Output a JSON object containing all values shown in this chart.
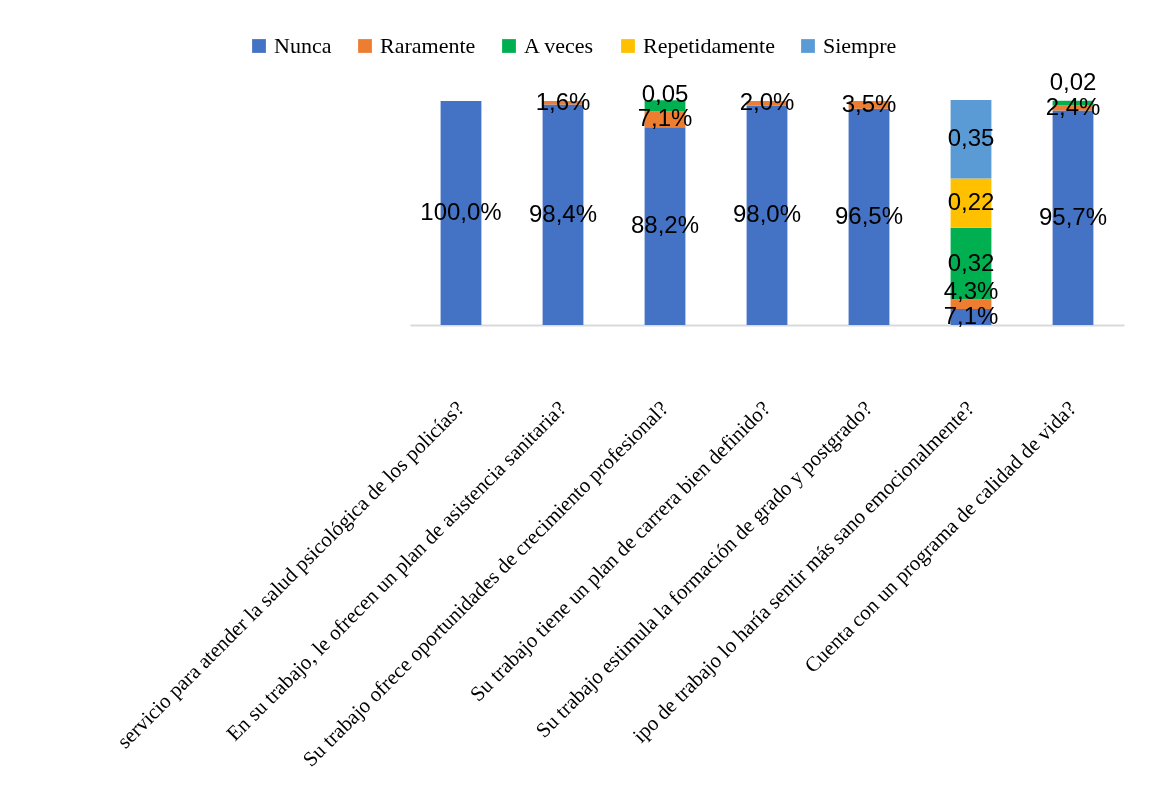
{
  "chart_data": {
    "type": "bar",
    "stacked": true,
    "legend": "top",
    "categories": [
      "servicio para atender la salud psicológica de los policías?",
      "En su trabajo, le ofrecen un plan de asistencia sanitaria?",
      "Su trabajo ofrece oportunidades de crecimiento profesional?",
      "Su trabajo tiene un plan de carrera bien definido?",
      "Su trabajo estimula  la formación de grado y postgrado?",
      "ipo de trabajo lo haría sentir más sano emocionalmente?",
      "Cuenta con un programa de calidad de vida?"
    ],
    "series": [
      {
        "name": "Nunca",
        "color": "#4472c4",
        "values": [
          1.0,
          0.984,
          0.882,
          0.98,
          0.965,
          0.071,
          0.957
        ],
        "value_labels": [
          "100,0%",
          "98,4%",
          "88,2%",
          "98,0%",
          "96,5%",
          "7,1%",
          "95,7%"
        ]
      },
      {
        "name": "Raramente",
        "color": "#ed7d31",
        "values": [
          null,
          0.016,
          0.071,
          0.02,
          0.035,
          0.043,
          0.024
        ],
        "value_labels": [
          null,
          "1,6%",
          "7,1%",
          "2,0%",
          "3,5%",
          "4,3%",
          "2,4%"
        ]
      },
      {
        "name": "A veces",
        "color": "#00b050",
        "values": [
          null,
          null,
          0.05,
          null,
          null,
          0.32,
          0.02
        ],
        "value_labels": [
          null,
          null,
          "0,05",
          null,
          null,
          "0,32",
          "0,02"
        ]
      },
      {
        "name": "Repetidamente",
        "color": "#ffc000",
        "values": [
          null,
          null,
          null,
          null,
          null,
          0.22,
          null
        ],
        "value_labels": [
          null,
          null,
          null,
          null,
          null,
          "0,22",
          null
        ]
      },
      {
        "name": "Siempre",
        "color": "#5b9bd5",
        "values": [
          null,
          null,
          null,
          null,
          null,
          0.35,
          null
        ],
        "value_labels": [
          null,
          null,
          null,
          null,
          null,
          "0,35",
          null
        ]
      }
    ]
  }
}
